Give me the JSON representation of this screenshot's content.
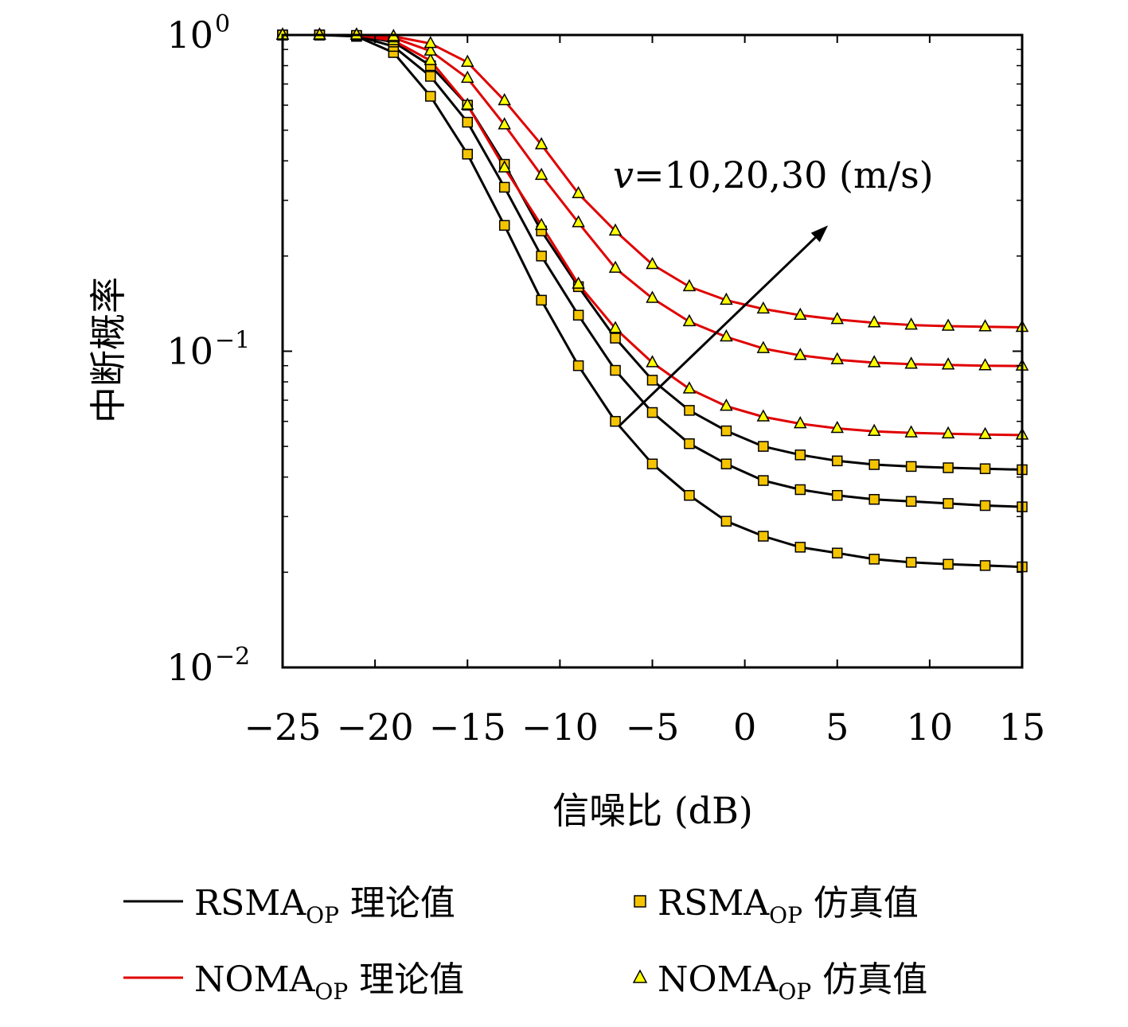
{
  "chart_data": {
    "type": "line",
    "xlabel": "信噪比 (dB)",
    "ylabel": "中断概率",
    "xlim": [
      -25,
      15
    ],
    "ylim": [
      0.01,
      1
    ],
    "yscale": "log",
    "x_ticks": [
      "−25",
      "−20",
      "−15",
      "−10",
      "−5",
      "0",
      "5",
      "10",
      "15"
    ],
    "y_ticks": [
      {
        "base": "10",
        "exp": "0",
        "value": 1
      },
      {
        "base": "10",
        "exp": "−1",
        "value": 0.1
      },
      {
        "base": "10",
        "exp": "−2",
        "value": 0.01
      }
    ],
    "grid": false,
    "annotation": {
      "text_italic": "v",
      "text": "=10,20,30 (m/s)",
      "arrow_from": {
        "x": -6.8,
        "y": 0.058
      },
      "arrow_to": {
        "x": 4.5,
        "y": 0.25
      }
    },
    "legend": {
      "placement": "bottom",
      "entries": [
        {
          "label": "RSMA",
          "subscript": "OP",
          "suffix": " 理论值",
          "marker": "line",
          "color": "#000000"
        },
        {
          "label": "RSMA",
          "subscript": "OP",
          "suffix": " 仿真值",
          "marker": "square",
          "color": "#f5c400"
        },
        {
          "label": "NOMA",
          "subscript": "OP",
          "suffix": " 理论值",
          "marker": "line",
          "color": "#e00000"
        },
        {
          "label": "NOMA",
          "subscript": "OP",
          "suffix": " 仿真值",
          "marker": "triangle",
          "color": "#ffff00"
        }
      ]
    },
    "x": [
      -25,
      -23,
      -21,
      -19,
      -17,
      -15,
      -13,
      -11,
      -9,
      -7,
      -5,
      -3,
      -1,
      1,
      3,
      5,
      7,
      9,
      11,
      13,
      15
    ],
    "series": [
      {
        "group": "RSMA",
        "line_color": "#000000",
        "marker": "square",
        "marker_color": "#f5c400",
        "values": [
          1.0,
          1.0,
          0.99,
          0.88,
          0.64,
          0.42,
          0.25,
          0.145,
          0.09,
          0.06,
          0.044,
          0.035,
          0.029,
          0.026,
          0.024,
          0.023,
          0.022,
          0.0215,
          0.0212,
          0.021,
          0.0208
        ]
      },
      {
        "group": "RSMA",
        "line_color": "#000000",
        "marker": "square",
        "marker_color": "#f5c400",
        "values": [
          1.0,
          1.0,
          0.995,
          0.92,
          0.74,
          0.53,
          0.33,
          0.2,
          0.13,
          0.087,
          0.064,
          0.051,
          0.044,
          0.039,
          0.0365,
          0.035,
          0.034,
          0.0335,
          0.033,
          0.0325,
          0.0322
        ]
      },
      {
        "group": "RSMA",
        "line_color": "#000000",
        "marker": "square",
        "marker_color": "#f5c400",
        "values": [
          1.0,
          1.0,
          0.997,
          0.95,
          0.8,
          0.6,
          0.39,
          0.24,
          0.16,
          0.11,
          0.081,
          0.065,
          0.056,
          0.05,
          0.047,
          0.045,
          0.0438,
          0.0432,
          0.0428,
          0.0425,
          0.0422
        ]
      },
      {
        "group": "NOMA",
        "line_color": "#e00000",
        "marker": "triangle",
        "marker_color": "#ffff00",
        "values": [
          1.0,
          1.0,
          1.0,
          0.96,
          0.83,
          0.6,
          0.38,
          0.25,
          0.163,
          0.118,
          0.092,
          0.076,
          0.067,
          0.062,
          0.059,
          0.057,
          0.0558,
          0.0552,
          0.0548,
          0.0545,
          0.0543
        ]
      },
      {
        "group": "NOMA",
        "line_color": "#e00000",
        "marker": "triangle",
        "marker_color": "#ffff00",
        "values": [
          1.0,
          1.0,
          1.0,
          0.98,
          0.89,
          0.73,
          0.52,
          0.36,
          0.255,
          0.183,
          0.147,
          0.124,
          0.111,
          0.102,
          0.097,
          0.094,
          0.092,
          0.091,
          0.0905,
          0.09,
          0.0898
        ]
      },
      {
        "group": "NOMA",
        "line_color": "#e00000",
        "marker": "triangle",
        "marker_color": "#ffff00",
        "values": [
          1.0,
          1.0,
          1.0,
          0.99,
          0.94,
          0.82,
          0.62,
          0.45,
          0.315,
          0.24,
          0.188,
          0.16,
          0.145,
          0.136,
          0.13,
          0.126,
          0.123,
          0.121,
          0.12,
          0.1195,
          0.119
        ]
      }
    ]
  }
}
